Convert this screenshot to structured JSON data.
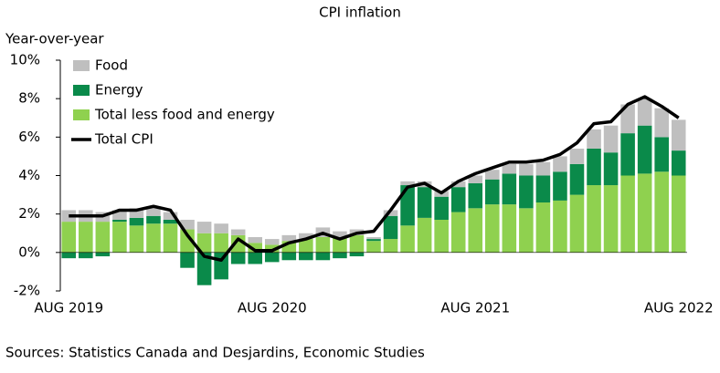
{
  "chart_data": {
    "type": "stacked-bar-line",
    "title": "CPI inflation",
    "y_label": "Year-over-year",
    "source": "Sources: Statistics Canada and Desjardins, Economic Studies",
    "categories": [
      "AUG 2019",
      null,
      null,
      null,
      null,
      null,
      null,
      null,
      null,
      null,
      null,
      null,
      "AUG 2020",
      null,
      null,
      null,
      null,
      null,
      null,
      null,
      null,
      null,
      null,
      null,
      "AUG 2021",
      null,
      null,
      null,
      null,
      null,
      null,
      null,
      null,
      null,
      null,
      null,
      "AUG 2022"
    ],
    "series": [
      {
        "name": "Food",
        "color": "#bfbfbf",
        "kind": "bar",
        "values": [
          0.6,
          0.6,
          0.5,
          0.5,
          0.5,
          0.5,
          0.4,
          0.5,
          0.6,
          0.5,
          0.3,
          0.3,
          0.3,
          0.3,
          0.3,
          0.5,
          0.3,
          0.3,
          0.1,
          0.3,
          0.2,
          0.3,
          0.3,
          0.3,
          0.4,
          0.5,
          0.5,
          0.6,
          0.7,
          0.8,
          0.8,
          1.0,
          1.4,
          1.5,
          1.4,
          1.5,
          1.6
        ]
      },
      {
        "name": "Energy",
        "color": "#0a8a4a",
        "kind": "bar",
        "values": [
          -0.3,
          -0.3,
          -0.2,
          0.1,
          0.4,
          0.4,
          0.2,
          -0.8,
          -1.7,
          -1.4,
          -0.6,
          -0.6,
          -0.5,
          -0.4,
          -0.4,
          -0.4,
          -0.3,
          -0.2,
          0.1,
          1.2,
          2.1,
          1.6,
          1.2,
          1.3,
          1.3,
          1.3,
          1.6,
          1.7,
          1.4,
          1.5,
          1.6,
          1.9,
          1.7,
          2.2,
          2.5,
          1.8,
          1.3
        ]
      },
      {
        "name": "Total less food and energy",
        "color": "#8fd14f",
        "kind": "bar",
        "values": [
          1.6,
          1.6,
          1.6,
          1.6,
          1.4,
          1.5,
          1.5,
          1.2,
          1.0,
          1.0,
          0.9,
          0.5,
          0.4,
          0.6,
          0.7,
          0.8,
          0.8,
          0.9,
          0.6,
          0.7,
          1.4,
          1.8,
          1.7,
          2.1,
          2.3,
          2.5,
          2.5,
          2.3,
          2.6,
          2.7,
          3.0,
          3.5,
          3.5,
          4.0,
          4.1,
          4.2,
          4.0
        ]
      },
      {
        "name": "Total CPI",
        "color": "#000000",
        "kind": "line",
        "values": [
          1.9,
          1.9,
          1.9,
          2.2,
          2.2,
          2.4,
          2.2,
          0.9,
          -0.2,
          -0.4,
          0.7,
          0.1,
          0.1,
          0.5,
          0.7,
          1.0,
          0.7,
          1.0,
          1.1,
          2.2,
          3.4,
          3.6,
          3.1,
          3.7,
          4.1,
          4.4,
          4.7,
          4.7,
          4.8,
          5.1,
          5.7,
          6.7,
          6.8,
          7.7,
          8.1,
          7.6,
          7.0
        ]
      }
    ],
    "ylim": [
      -2,
      10
    ],
    "yticks": [
      {
        "value": -2,
        "label": "-2%"
      },
      {
        "value": 0,
        "label": "0%"
      },
      {
        "value": 2,
        "label": "2%"
      },
      {
        "value": 4,
        "label": "4%"
      },
      {
        "value": 6,
        "label": "6%"
      },
      {
        "value": 8,
        "label": "8%"
      },
      {
        "value": 10,
        "label": "10%"
      }
    ],
    "legend": "top-left"
  }
}
